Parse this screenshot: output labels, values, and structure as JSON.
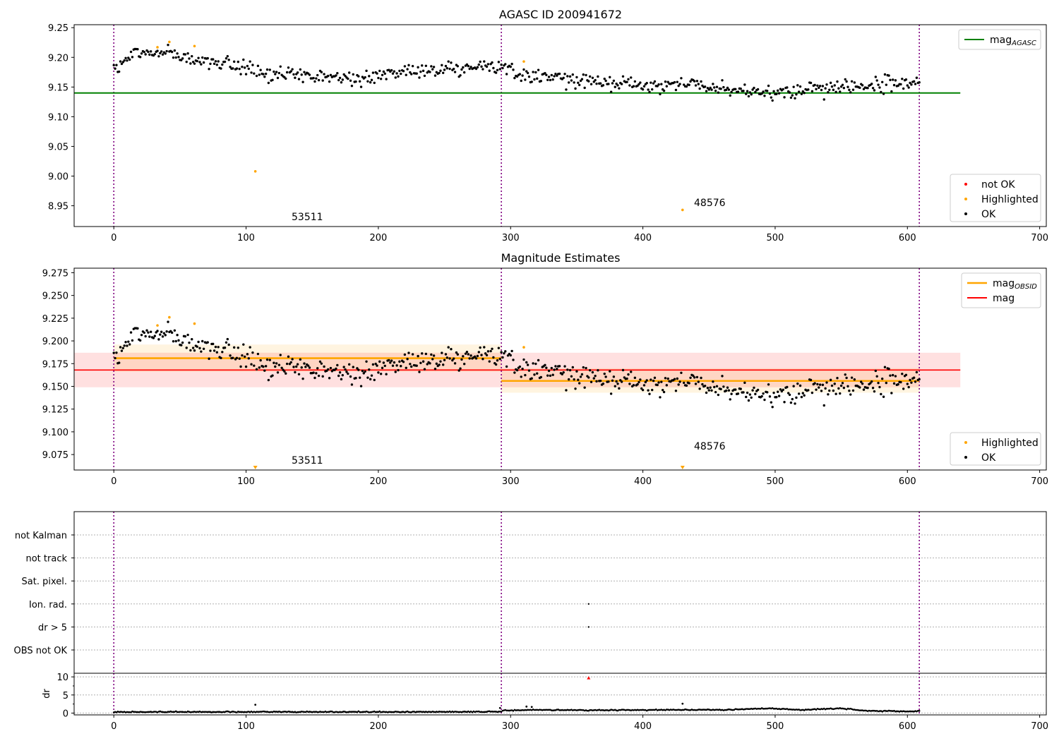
{
  "colors": {
    "ok": "#000000",
    "highlighted": "#ffa500",
    "not_ok": "#ff0000",
    "agasc_line": "#008000",
    "mag_line": "#ff0000",
    "obsid_line": "#ffa500",
    "obs_boundary": "#800080",
    "grid": "#b0b0b0"
  },
  "chart_data": [
    {
      "type": "scatter",
      "title": "AGASC ID 200941672",
      "xlim": [
        -30,
        705
      ],
      "ylim": [
        8.915,
        9.255
      ],
      "xticks": [
        0,
        100,
        200,
        300,
        400,
        500,
        600,
        700
      ],
      "yticks": [
        8.95,
        9.0,
        9.05,
        9.1,
        9.15,
        9.2,
        9.25
      ],
      "ytick_labels": [
        "8.95",
        "9.00",
        "9.05",
        "9.10",
        "9.15",
        "9.20",
        "9.25"
      ],
      "obs_boundaries": [
        0,
        293,
        609
      ],
      "lines": [
        {
          "name": "mag<sub>AGASC</sub>",
          "label_main": "mag",
          "label_sub": "AGASC",
          "y": 9.14,
          "x_range": [
            -30,
            640
          ],
          "color_key": "agasc_line"
        }
      ],
      "series": [
        {
          "name": "not OK",
          "color_key": "not_ok",
          "points": []
        },
        {
          "name": "Highlighted",
          "color_key": "highlighted",
          "points": [
            [
              33,
              9.217
            ],
            [
              42,
              9.226
            ],
            [
              61,
              9.219
            ],
            [
              107,
              9.008
            ],
            [
              310,
              9.193
            ],
            [
              430,
              8.943
            ]
          ]
        },
        {
          "name": "OK",
          "color_key": "ok",
          "trend_segments": [
            [
              [
                0,
                9.178
              ],
              [
                15,
                9.205
              ],
              [
                40,
                9.21
              ],
              [
                60,
                9.195
              ],
              [
                90,
                9.185
              ],
              [
                120,
                9.172
              ],
              [
                150,
                9.168
              ],
              [
                185,
                9.163
              ],
              [
                215,
                9.172
              ],
              [
                250,
                9.183
              ],
              [
                293,
                9.183
              ]
            ],
            [
              [
                293,
                9.18
              ],
              [
                320,
                9.168
              ],
              [
                350,
                9.163
              ],
              [
                380,
                9.155
              ],
              [
                410,
                9.152
              ],
              [
                440,
                9.156
              ],
              [
                470,
                9.147
              ],
              [
                500,
                9.14
              ],
              [
                530,
                9.147
              ],
              [
                560,
                9.152
              ],
              [
                590,
                9.155
              ],
              [
                609,
                9.16
              ]
            ]
          ],
          "scatter_sd": 0.011
        }
      ],
      "annotations": [
        {
          "text": "53511",
          "x": 147,
          "y": 8.925
        },
        {
          "text": "48576",
          "x": 450,
          "y": 8.947
        }
      ],
      "legends": [
        {
          "position": "upper-right",
          "items": [
            "mag<sub>AGASC</sub>"
          ]
        },
        {
          "position": "lower-right",
          "items": [
            "not OK",
            "Highlighted",
            "OK"
          ]
        }
      ]
    },
    {
      "type": "scatter",
      "title": "Magnitude Estimates",
      "xlim": [
        -30,
        705
      ],
      "ylim": [
        9.058,
        9.28
      ],
      "xticks": [
        0,
        100,
        200,
        300,
        400,
        500,
        600,
        700
      ],
      "yticks": [
        9.075,
        9.1,
        9.125,
        9.15,
        9.175,
        9.2,
        9.225,
        9.25,
        9.275
      ],
      "ytick_labels": [
        "9.075",
        "9.100",
        "9.125",
        "9.150",
        "9.175",
        "9.200",
        "9.225",
        "9.250",
        "9.275"
      ],
      "obs_boundaries": [
        0,
        293,
        609
      ],
      "bands": [
        {
          "x_range": [
            0,
            293
          ],
          "y_range": [
            9.166,
            9.196
          ],
          "color_key": "obsid_line",
          "opacity": 0.12
        },
        {
          "x_range": [
            293,
            609
          ],
          "y_range": [
            9.143,
            9.17
          ],
          "color_key": "obsid_line",
          "opacity": 0.12
        },
        {
          "x_range": [
            -30,
            640
          ],
          "y_range": [
            9.149,
            9.187
          ],
          "color_key": "mag_line",
          "opacity": 0.12
        }
      ],
      "lines": [
        {
          "name": "mag<sub>OBSID</sub>",
          "label_main": "mag",
          "label_sub": "OBSID",
          "segments": [
            [
              [
                0,
                9.181
              ],
              [
                293,
                9.181
              ]
            ],
            [
              [
                293,
                9.156
              ],
              [
                609,
                9.156
              ]
            ]
          ],
          "color_key": "obsid_line"
        },
        {
          "name": "mag",
          "label_main": "mag",
          "label_sub": "",
          "y": 9.168,
          "x_range": [
            -30,
            640
          ],
          "color_key": "mag_line"
        }
      ],
      "series": [
        {
          "name": "Highlighted",
          "color_key": "highlighted",
          "points": [
            [
              33,
              9.217
            ],
            [
              42,
              9.226
            ],
            [
              61,
              9.219
            ],
            [
              310,
              9.193
            ]
          ],
          "clipped_markers": [
            107,
            430
          ]
        },
        {
          "name": "OK",
          "color_key": "ok",
          "same_as_panel": 0
        }
      ],
      "annotations": [
        {
          "text": "53511",
          "x": 147,
          "y": 9.064
        },
        {
          "text": "48576",
          "x": 450,
          "y": 9.081
        }
      ],
      "legends": [
        {
          "position": "upper-right",
          "items": [
            "mag<sub>OBSID</sub>",
            "mag"
          ]
        },
        {
          "position": "lower-right",
          "items": [
            "Highlighted",
            "OK"
          ]
        }
      ]
    },
    {
      "type": "scatter",
      "title": "",
      "xlim": [
        -30,
        705
      ],
      "categories": [
        "OBS not OK",
        "dr > 5",
        "Ion. rad.",
        "Sat. pixel.",
        "not track",
        "not Kalman"
      ],
      "obs_boundaries": [
        0,
        293,
        609
      ],
      "flag_points": [
        {
          "category": "Ion. rad.",
          "x": 359
        },
        {
          "category": "dr > 5",
          "x": 359
        }
      ]
    },
    {
      "type": "scatter",
      "title": "",
      "xlim": [
        -30,
        705
      ],
      "ylim": [
        -0.5,
        11
      ],
      "ylabel": "dr",
      "xticks": [
        0,
        100,
        200,
        300,
        400,
        500,
        600,
        700
      ],
      "yticks": [
        0,
        5,
        10
      ],
      "ytick_labels": [
        "0",
        "5",
        "10"
      ],
      "obs_boundaries": [
        0,
        293,
        609
      ],
      "baseline_segments": [
        [
          [
            0,
            0.3
          ],
          [
            100,
            0.35
          ],
          [
            200,
            0.3
          ],
          [
            293,
            0.4
          ]
        ],
        [
          [
            293,
            0.7
          ],
          [
            320,
            0.9
          ],
          [
            360,
            0.8
          ],
          [
            420,
            0.9
          ],
          [
            460,
            0.9
          ],
          [
            495,
            1.3
          ],
          [
            520,
            0.9
          ],
          [
            550,
            1.3
          ],
          [
            570,
            0.6
          ],
          [
            609,
            0.5
          ]
        ]
      ],
      "points": [
        [
          107,
          2.3
        ],
        [
          430,
          2.6
        ],
        [
          312,
          1.8
        ],
        [
          316,
          1.7
        ],
        [
          292,
          1.4
        ]
      ],
      "not_ok_points": [
        [
          359,
          9.7
        ]
      ]
    }
  ]
}
